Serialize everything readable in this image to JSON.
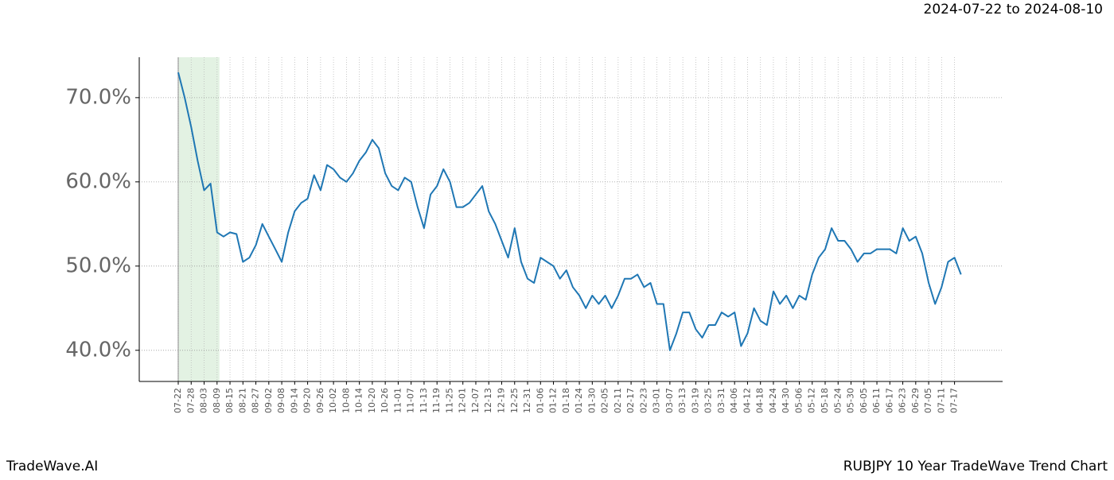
{
  "chart_data": {
    "type": "line",
    "title": "RUBJPY 10 Year TradeWave Trend Chart",
    "subtitle": "2024-07-22 to 2024-08-10",
    "brand": "TradeWave.AI",
    "categories": [
      "07-22",
      null,
      "07-28",
      null,
      "08-03",
      null,
      "08-09",
      null,
      "08-15",
      null,
      "08-21",
      null,
      "08-27",
      null,
      "09-02",
      null,
      "09-08",
      null,
      "09-14",
      null,
      "09-20",
      null,
      "09-26",
      null,
      "10-02",
      null,
      "10-08",
      null,
      "10-14",
      null,
      "10-20",
      null,
      "10-26",
      null,
      "11-01",
      null,
      "11-07",
      null,
      "11-13",
      null,
      "11-19",
      null,
      "11-25",
      null,
      "12-01",
      null,
      "12-07",
      null,
      "12-13",
      null,
      "12-19",
      null,
      "12-25",
      null,
      "12-31",
      null,
      "01-06",
      null,
      "01-12",
      null,
      "01-18",
      null,
      "01-24",
      null,
      "01-30",
      null,
      "02-05",
      null,
      "02-11",
      null,
      "02-17",
      null,
      "02-23",
      null,
      "03-01",
      null,
      "03-07",
      null,
      "03-13",
      null,
      "03-19",
      null,
      "03-25",
      null,
      "03-31",
      null,
      "04-06",
      null,
      "04-12",
      null,
      "04-18",
      null,
      "04-24",
      null,
      "04-30",
      null,
      "05-06",
      null,
      "05-12",
      null,
      "05-18",
      null,
      "05-24",
      null,
      "05-30",
      null,
      "06-05",
      null,
      "06-11",
      null,
      "06-17",
      null,
      "06-23",
      null,
      "06-29",
      null,
      "07-05",
      null,
      "07-11",
      null,
      "07-17",
      null
    ],
    "series": [
      {
        "color": "#1f77b4",
        "values": [
          73.0,
          70.0,
          66.5,
          62.5,
          59.0,
          59.8,
          54.0,
          53.5,
          54.0,
          53.8,
          50.5,
          51.0,
          52.5,
          55.0,
          53.5,
          52.0,
          50.5,
          54.0,
          56.5,
          57.5,
          58.0,
          60.8,
          59.0,
          62.0,
          61.5,
          60.5,
          60.0,
          61.0,
          62.5,
          63.5,
          65.0,
          64.0,
          61.0,
          59.5,
          59.0,
          60.5,
          60.0,
          57.0,
          54.5,
          58.5,
          59.5,
          61.5,
          60.0,
          57.0,
          57.0,
          57.5,
          58.5,
          59.5,
          56.5,
          55.0,
          53.0,
          51.0,
          54.5,
          50.5,
          48.5,
          48.0,
          51.0,
          50.5,
          50.0,
          48.5,
          49.5,
          47.5,
          46.5,
          45.0,
          46.5,
          45.5,
          46.5,
          45.0,
          46.5,
          48.5,
          48.5,
          49.0,
          47.5,
          48.0,
          45.5,
          45.5,
          40.0,
          42.0,
          44.5,
          44.5,
          42.5,
          41.5,
          43.0,
          43.0,
          44.5,
          44.0,
          44.5,
          40.5,
          42.0,
          45.0,
          43.5,
          43.0,
          47.0,
          45.5,
          46.5,
          45.0,
          46.5,
          46.0,
          49.0,
          51.0,
          52.0,
          54.5,
          53.0,
          53.0,
          52.0,
          50.5,
          51.5,
          51.5,
          52.0,
          52.0,
          52.0,
          51.5,
          54.5,
          53.0,
          53.5,
          51.5,
          48.0,
          45.5,
          47.5,
          50.5,
          51.0,
          49.0
        ]
      }
    ],
    "ylim": [
      36.3,
      74.8
    ],
    "yticks": [
      {
        "value": 40,
        "label": "40.0%"
      },
      {
        "value": 50,
        "label": "50.0%"
      },
      {
        "value": 60,
        "label": "60.0%"
      },
      {
        "value": 70,
        "label": "70.0%"
      }
    ],
    "grid": true,
    "highlight": {
      "from": "07-22",
      "to": "08-09",
      "color": "#e3f2e3"
    }
  }
}
